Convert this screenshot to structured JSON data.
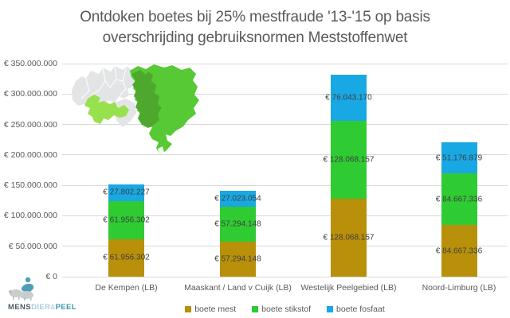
{
  "title": {
    "line1": "Ontdoken boetes bij 25% mestfraude '13-'15 op basis",
    "line2": "overschrijding gebruiksnormen Meststoffenwet"
  },
  "chart_data": {
    "type": "bar",
    "stacked": true,
    "title": "Ontdoken boetes bij 25% mestfraude '13-'15 op basis overschrijding gebruiksnormen Meststoffenwet",
    "categories": [
      "De Kempen (LB)",
      "Maaskant / Land v Cuijk (LB)",
      "Westelijk Peelgebied (LB)",
      "Noord-Limburg (LB)"
    ],
    "series": [
      {
        "name": "boete mest",
        "color": "#B8900A",
        "values": [
          61956302,
          57294148,
          128068157,
          84667336
        ]
      },
      {
        "name": "boete stikstof",
        "color": "#2FCB33",
        "values": [
          61956302,
          57294148,
          128068157,
          84667336
        ]
      },
      {
        "name": "boete fosfaat",
        "color": "#18A8E3",
        "values": [
          27802227,
          27023054,
          76043170,
          51176879
        ]
      }
    ],
    "value_label_prefix": "€ ",
    "y_axis": {
      "min": 0,
      "max": 350000000,
      "step": 50000000,
      "tick_labels": [
        "€ 0",
        "€ 50.000.000",
        "€ 100.000.000",
        "€ 150.000.000",
        "€ 200.000.000",
        "€ 250.000.000",
        "€ 300.000.000",
        "€ 350.000.000"
      ]
    },
    "grid": true,
    "legend_position": "bottom"
  },
  "map": {
    "label": "regiokaart Brabant / Peel",
    "colors": {
      "base": "#E3E4E6",
      "border": "#FFFFFF",
      "de_kempen": "#97E14E",
      "peel_dark": "#4FA82E",
      "peel_bright": "#56C934"
    }
  },
  "logo": {
    "part1": "MENS",
    "part2": "DIER",
    "part3": "&",
    "part4": "PEEL"
  }
}
